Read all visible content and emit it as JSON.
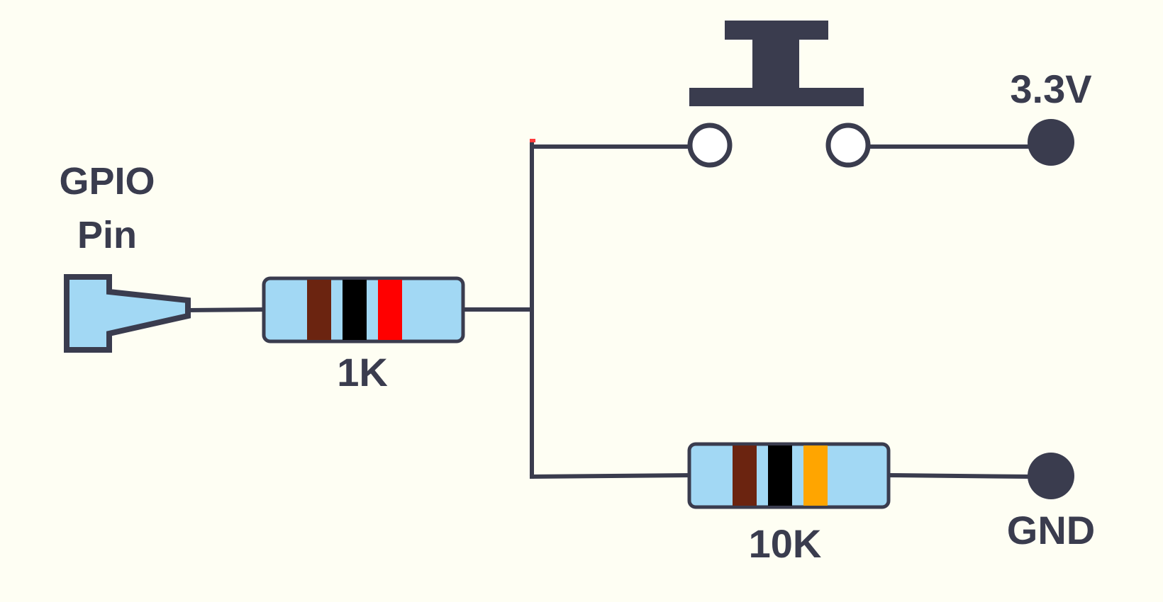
{
  "colors": {
    "background": "#fefef3",
    "wire": "#3a3c4e",
    "component_fill": "#a2d8f4",
    "band_brown": "#6b2410",
    "band_black": "#000000",
    "band_red": "#ff0000",
    "band_orange": "#ffa500"
  },
  "gpio": {
    "label_line1": "GPIO",
    "label_line2": "Pin"
  },
  "resistor_1k": {
    "label": "1K",
    "bands": [
      "brown",
      "black",
      "red"
    ]
  },
  "resistor_10k": {
    "label": "10K",
    "bands": [
      "brown",
      "black",
      "orange"
    ]
  },
  "switch": {
    "type": "push-button"
  },
  "power": {
    "label": "3.3V"
  },
  "ground": {
    "label": "GND"
  }
}
